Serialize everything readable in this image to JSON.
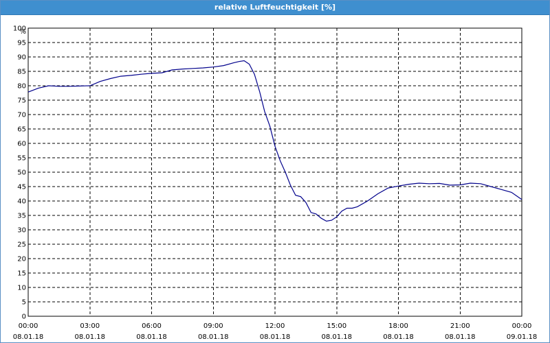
{
  "window": {
    "title": "relative Luftfeuchtigkeit [%]"
  },
  "chart_data": {
    "type": "line",
    "title": "relative Luftfeuchtigkeit [%]",
    "ylabel": "%",
    "xlabel": "",
    "ylim": [
      0,
      100
    ],
    "yticks": [
      0,
      5,
      10,
      15,
      20,
      25,
      30,
      35,
      40,
      45,
      50,
      55,
      60,
      65,
      70,
      75,
      80,
      85,
      90,
      95,
      100
    ],
    "xlim": [
      0,
      24
    ],
    "xticks": [
      {
        "hours": 0,
        "time": "00:00",
        "date": "08.01.18"
      },
      {
        "hours": 3,
        "time": "03:00",
        "date": "08.01.18"
      },
      {
        "hours": 6,
        "time": "06:00",
        "date": "08.01.18"
      },
      {
        "hours": 9,
        "time": "09:00",
        "date": "08.01.18"
      },
      {
        "hours": 12,
        "time": "12:00",
        "date": "08.01.18"
      },
      {
        "hours": 15,
        "time": "15:00",
        "date": "08.01.18"
      },
      {
        "hours": 18,
        "time": "18:00",
        "date": "08.01.18"
      },
      {
        "hours": 21,
        "time": "21:00",
        "date": "08.01.18"
      },
      {
        "hours": 24,
        "time": "00:00",
        "date": "09.01.18"
      }
    ],
    "grid": true,
    "series": [
      {
        "color": "#00008b",
        "x": [
          0,
          0.5,
          1,
          1.5,
          2,
          2.5,
          3,
          3.5,
          4,
          4.5,
          5,
          5.5,
          6,
          6.5,
          7,
          7.5,
          8,
          8.5,
          9,
          9.5,
          10,
          10.25,
          10.5,
          10.75,
          11,
          11.25,
          11.5,
          11.75,
          12,
          12.25,
          12.5,
          12.75,
          13,
          13.25,
          13.5,
          13.75,
          14,
          14.25,
          14.5,
          14.75,
          15,
          15.25,
          15.5,
          15.75,
          16,
          16.5,
          17,
          17.5,
          18,
          18.5,
          19,
          19.5,
          20,
          20.5,
          21,
          21.5,
          22,
          22.5,
          23,
          23.5,
          24
        ],
        "y": [
          77.8,
          79.2,
          80.0,
          79.8,
          79.8,
          79.9,
          80.0,
          81.5,
          82.5,
          83.3,
          83.6,
          84.0,
          84.3,
          84.5,
          85.5,
          85.8,
          86.0,
          86.2,
          86.5,
          87.0,
          88.0,
          88.4,
          88.7,
          87.5,
          84.0,
          78.0,
          71.0,
          66.0,
          59.0,
          54.0,
          50.0,
          45.5,
          42.0,
          41.5,
          39.5,
          36.0,
          35.5,
          34.0,
          33.0,
          33.3,
          34.5,
          36.5,
          37.5,
          37.5,
          38.0,
          40.0,
          42.5,
          44.5,
          45.2,
          45.8,
          46.2,
          46.0,
          46.1,
          45.5,
          45.6,
          46.2,
          46.0,
          45.0,
          44.0,
          43.0,
          40.5
        ]
      }
    ]
  }
}
